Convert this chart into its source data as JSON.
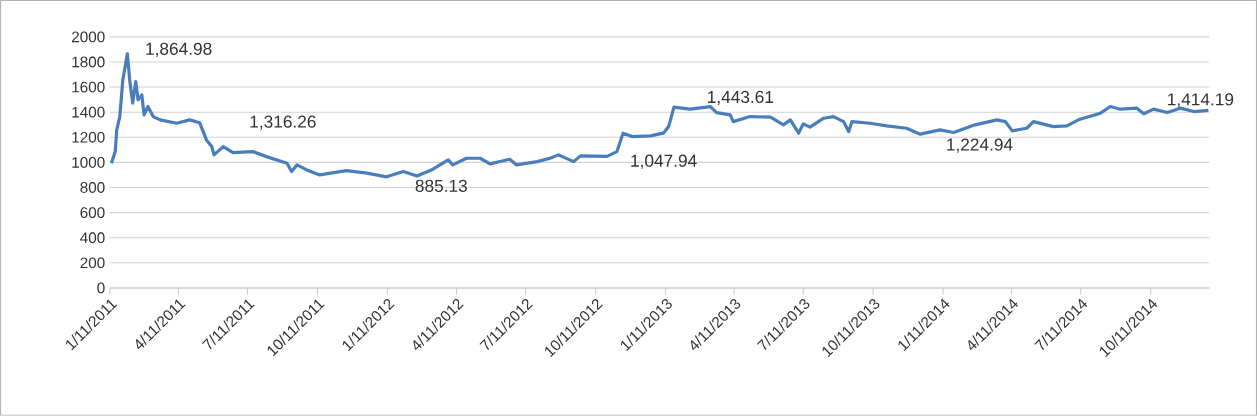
{
  "chart_data": {
    "type": "line",
    "x": [
      "2011-01-13",
      "2011-01-18",
      "2011-01-20",
      "2011-01-24",
      "2011-01-28",
      "2011-02-03",
      "2011-02-06",
      "2011-02-10",
      "2011-02-14",
      "2011-02-17",
      "2011-02-22",
      "2011-02-25",
      "2011-03-02",
      "2011-03-09",
      "2011-03-18",
      "2011-04-09",
      "2011-04-26",
      "2011-05-09",
      "2011-05-18",
      "2011-05-25",
      "2011-05-28",
      "2011-06-09",
      "2011-06-22",
      "2011-07-18",
      "2011-08-05",
      "2011-09-01",
      "2011-09-07",
      "2011-09-14",
      "2011-09-27",
      "2011-10-14",
      "2011-11-18",
      "2011-12-15",
      "2012-01-10",
      "2012-02-01",
      "2012-02-19",
      "2012-03-11",
      "2012-03-31",
      "2012-04-06",
      "2012-04-24",
      "2012-05-12",
      "2012-05-25",
      "2012-06-20",
      "2012-06-29",
      "2012-07-26",
      "2012-08-12",
      "2012-08-23",
      "2012-09-12",
      "2012-09-21",
      "2012-10-26",
      "2012-11-08",
      "2012-11-16",
      "2012-11-28",
      "2012-12-22",
      "2013-01-08",
      "2013-01-15",
      "2013-01-22",
      "2013-02-12",
      "2013-03-11",
      "2013-03-19",
      "2013-04-06",
      "2013-04-10",
      "2013-05-02",
      "2013-05-29",
      "2013-06-15",
      "2013-06-24",
      "2013-07-05",
      "2013-07-11",
      "2013-07-20",
      "2013-08-07",
      "2013-08-20",
      "2013-09-02",
      "2013-09-09",
      "2013-09-13",
      "2013-10-07",
      "2013-10-29",
      "2013-11-24",
      "2013-12-12",
      "2014-01-07",
      "2014-01-25",
      "2014-02-22",
      "2014-03-23",
      "2014-04-03",
      "2014-04-12",
      "2014-05-01",
      "2014-05-10",
      "2014-06-05",
      "2014-06-23",
      "2014-07-08",
      "2014-07-19",
      "2014-08-06",
      "2014-08-19",
      "2014-09-01",
      "2014-09-23",
      "2014-10-02",
      "2014-10-15",
      "2014-11-02",
      "2014-11-19",
      "2014-12-07",
      "2014-12-26"
    ],
    "series": [
      {
        "color": "#4a7ebb",
        "values": [
          994,
          1086,
          1259,
          1365,
          1657,
          1864.98,
          1657,
          1472,
          1644,
          1498,
          1538,
          1379,
          1445,
          1365,
          1339,
          1312,
          1339,
          1316.26,
          1179,
          1126,
          1060,
          1126,
          1078,
          1086,
          1046,
          994,
          927,
          980,
          940,
          900,
          935,
          914,
          885.13,
          927,
          892,
          946,
          1020,
          980,
          1033,
          1033,
          988,
          1025,
          980,
          1006,
          1033,
          1060,
          1006,
          1052,
          1047.94,
          1086,
          1233,
          1206,
          1211,
          1233,
          1285,
          1440,
          1424,
          1443.61,
          1397,
          1379,
          1325,
          1365,
          1360,
          1299,
          1339,
          1233,
          1307,
          1281,
          1352,
          1365,
          1325,
          1245,
          1325,
          1312,
          1291,
          1272,
          1224.94,
          1259,
          1238,
          1299,
          1339,
          1325,
          1251,
          1272,
          1325,
          1285,
          1291,
          1339,
          1360,
          1392,
          1445,
          1424,
          1432,
          1387,
          1424,
          1397,
          1432,
          1405,
          1414.19
        ]
      }
    ],
    "xlim": [
      "2011-01-11",
      "2014-12-27"
    ],
    "xticks": [
      {
        "value": "2011-01-11",
        "label": "1/11/2011"
      },
      {
        "value": "2011-04-11",
        "label": "4/11/2011"
      },
      {
        "value": "2011-07-11",
        "label": "7/11/2011"
      },
      {
        "value": "2011-10-11",
        "label": "10/11/2011"
      },
      {
        "value": "2012-01-11",
        "label": "1/11/2012"
      },
      {
        "value": "2012-04-11",
        "label": "4/11/2012"
      },
      {
        "value": "2012-07-11",
        "label": "7/11/2012"
      },
      {
        "value": "2012-10-11",
        "label": "10/11/2012"
      },
      {
        "value": "2013-01-11",
        "label": "1/11/2013"
      },
      {
        "value": "2013-04-11",
        "label": "4/11/2013"
      },
      {
        "value": "2013-07-11",
        "label": "7/11/2013"
      },
      {
        "value": "2013-10-11",
        "label": "10/11/2013"
      },
      {
        "value": "2014-01-11",
        "label": "1/11/2014"
      },
      {
        "value": "2014-04-11",
        "label": "4/11/2014"
      },
      {
        "value": "2014-07-11",
        "label": "7/11/2014"
      },
      {
        "value": "2014-10-11",
        "label": "10/11/2014"
      }
    ],
    "ylim": [
      0,
      2000
    ],
    "yticks": [
      0,
      200,
      400,
      600,
      800,
      1000,
      1200,
      1400,
      1600,
      1800,
      2000
    ],
    "grid": "y",
    "marker": "none",
    "line_style": "solid",
    "annotations": [
      {
        "text": "1,864.98",
        "x": "2011-02-03",
        "y": 1864.98
      },
      {
        "text": "1,316.26",
        "x": "2011-05-09",
        "y": 1316.26
      },
      {
        "text": "885.13",
        "x": "2012-01-10",
        "y": 885.13
      },
      {
        "text": "1,047.94",
        "x": "2012-10-26",
        "y": 1047.94
      },
      {
        "text": "1,443.61",
        "x": "2013-03-11",
        "y": 1443.61
      },
      {
        "text": "1,224.94",
        "x": "2013-12-12",
        "y": 1224.94
      },
      {
        "text": "1,414.19",
        "x": "2014-12-26",
        "y": 1414.19
      }
    ]
  }
}
